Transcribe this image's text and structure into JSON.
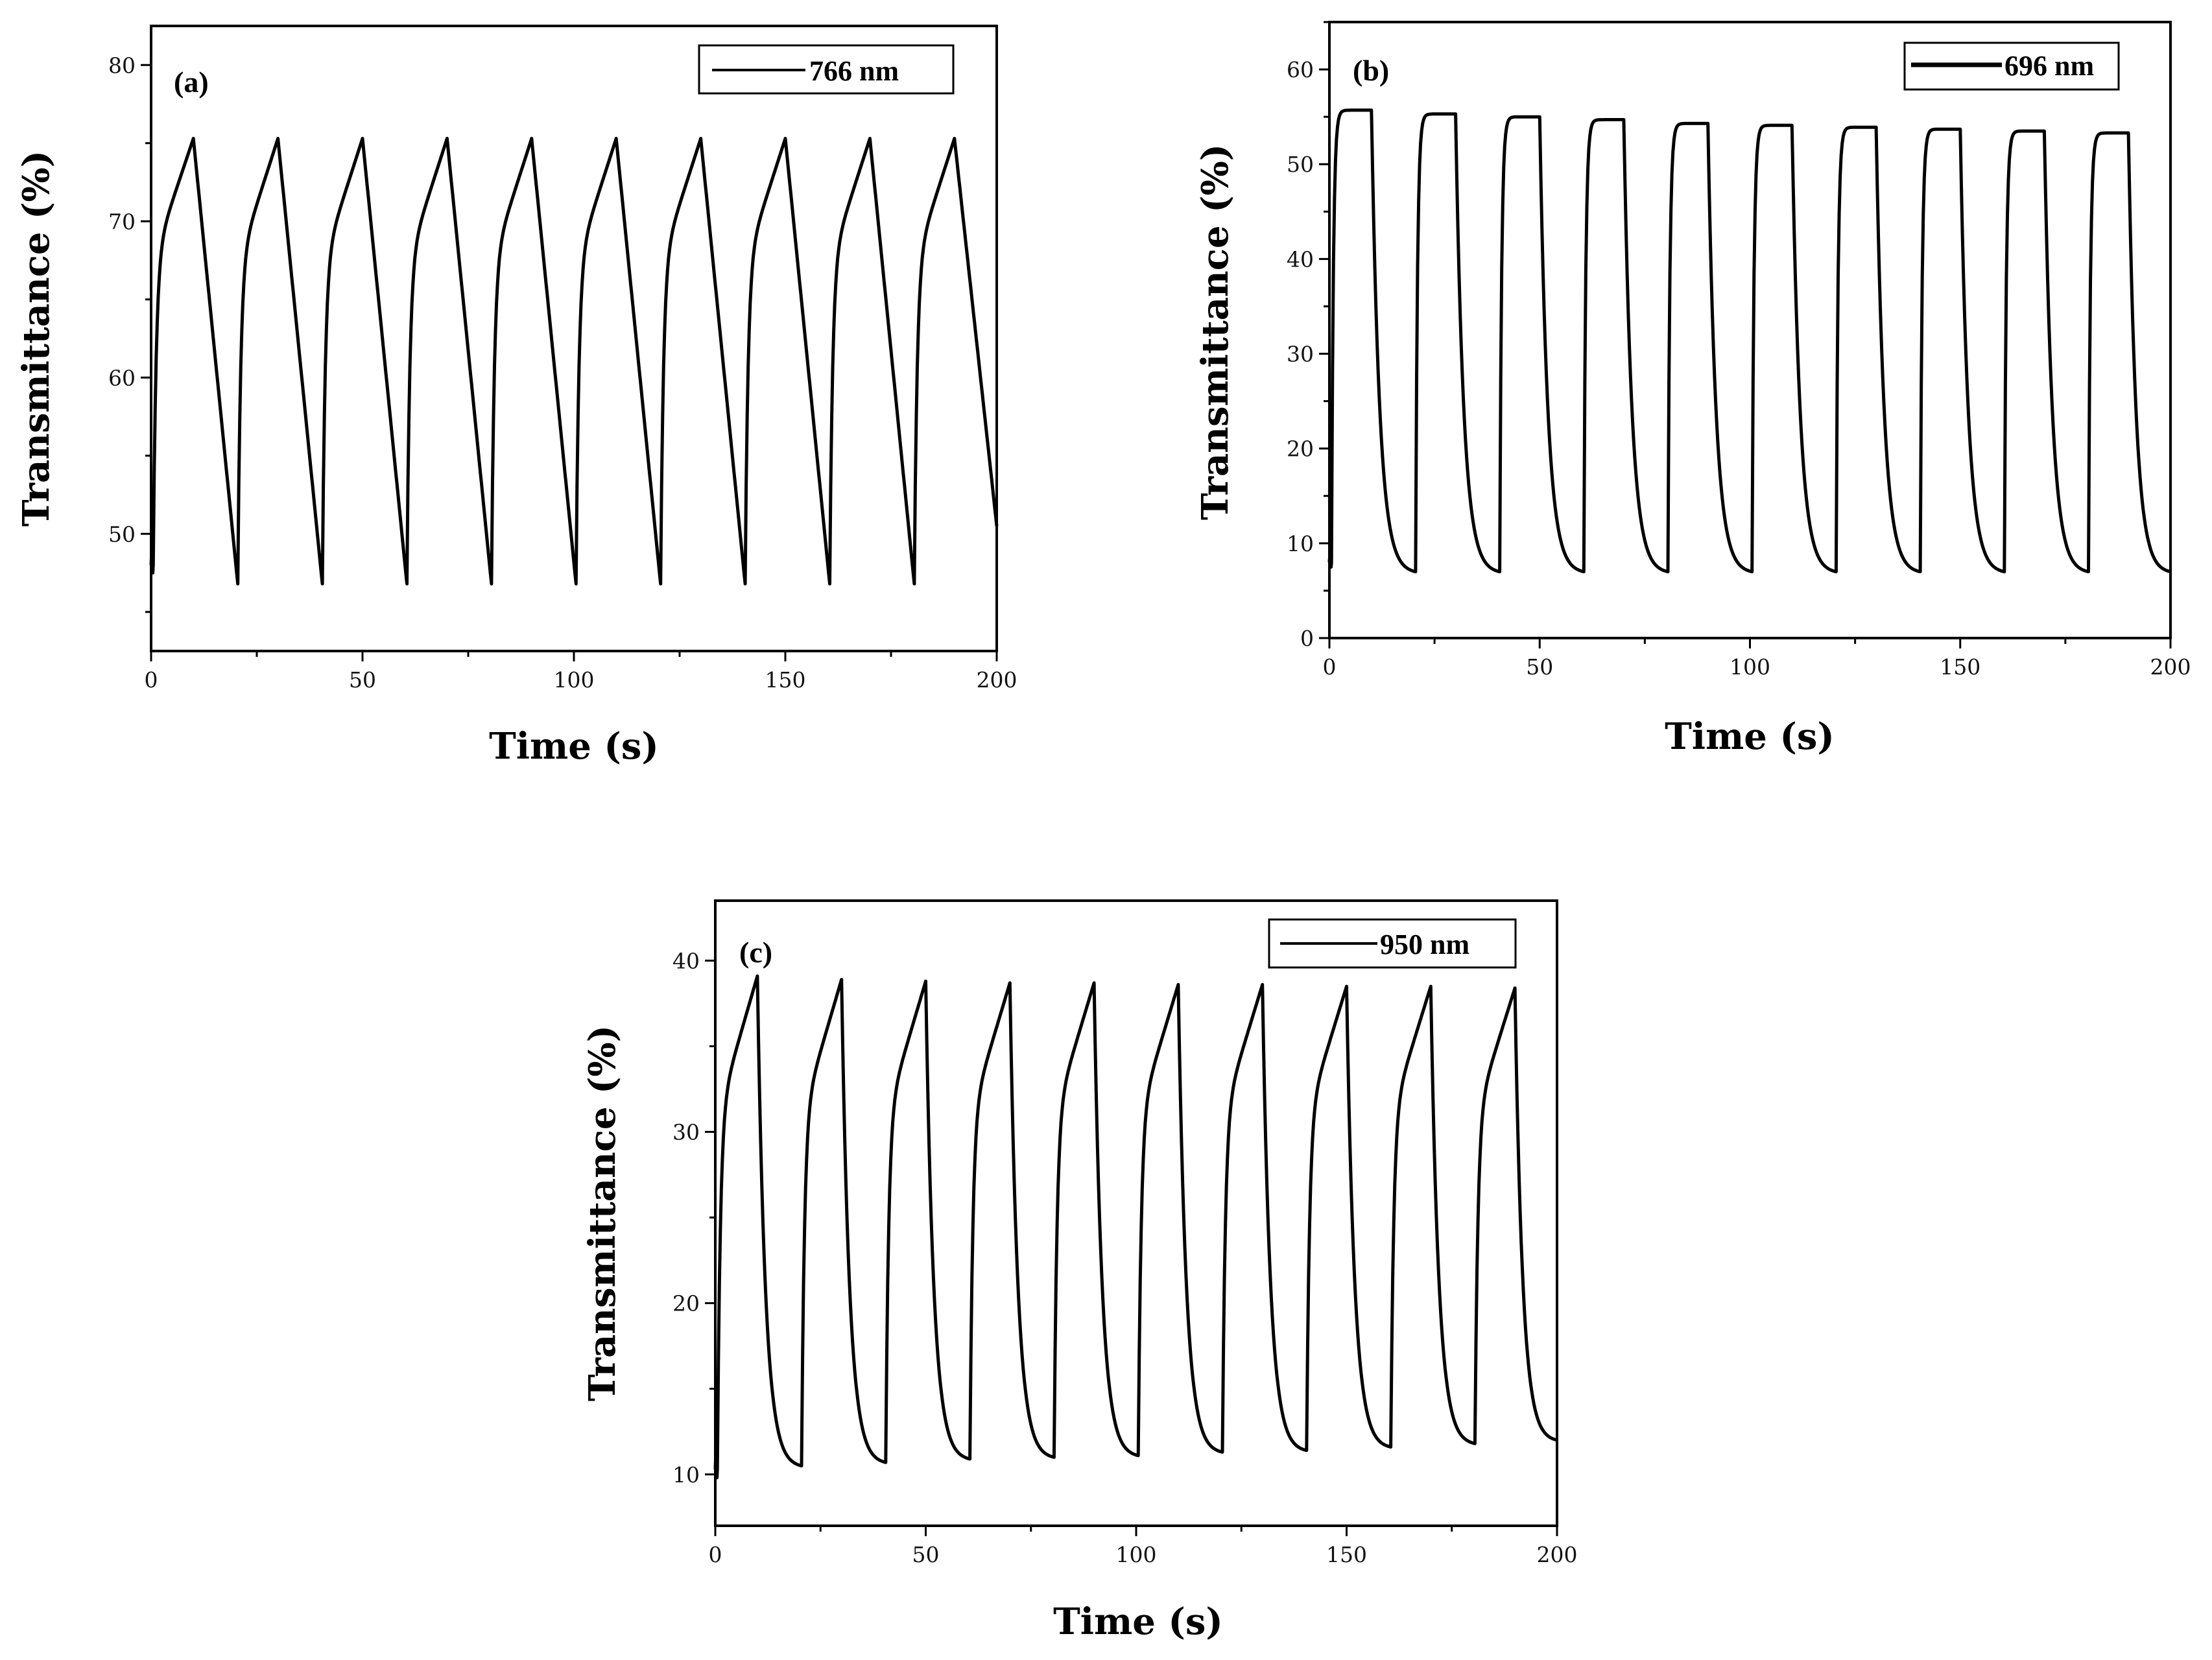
{
  "chart_data": [
    {
      "type": "line",
      "panel_label": "(a)",
      "title": "",
      "xlabel": "Time (s)",
      "ylabel": "Transmittance (%)",
      "xlim": [
        0,
        200
      ],
      "ylim": [
        42.5,
        82.5
      ],
      "xticks": [
        0,
        50,
        100,
        150,
        200
      ],
      "yticks": [
        50,
        60,
        70,
        80
      ],
      "legend": {
        "position": "top-right",
        "entries": [
          "766 nm"
        ]
      },
      "grid": false,
      "series": [
        {
          "name": "766 nm",
          "color": "#000000",
          "period": 20,
          "bleach_time": 10,
          "t_start": 0.5,
          "max_values": [
            75.3,
            75.3,
            75.3,
            75.3,
            75.3,
            75.3,
            75.3,
            75.3,
            75.3,
            75.3
          ],
          "min_values": [
            48.0,
            46.8,
            46.8,
            46.8,
            46.8,
            46.8,
            46.8,
            46.8,
            46.8,
            46.8,
            50.5
          ],
          "rise_shape": "fast-log",
          "decay_shape": "linear"
        }
      ]
    },
    {
      "type": "line",
      "panel_label": "(b)",
      "title": "",
      "xlabel": "Time (s)",
      "ylabel": "Transmittance (%)",
      "xlim": [
        0,
        200
      ],
      "ylim": [
        0,
        65
      ],
      "xticks": [
        0,
        50,
        100,
        150,
        200
      ],
      "yticks": [
        0,
        10,
        20,
        30,
        40,
        50,
        60
      ],
      "legend": {
        "position": "top-right",
        "entries": [
          "696 nm"
        ]
      },
      "grid": false,
      "series": [
        {
          "name": "696 nm",
          "color": "#000000",
          "period": 20,
          "bleach_time": 10,
          "t_start": 0.5,
          "max_values": [
            55.7,
            55.3,
            55.0,
            54.7,
            54.3,
            54.1,
            53.9,
            53.7,
            53.5,
            53.3
          ],
          "min_values": [
            8.0,
            7.0,
            7.0,
            7.0,
            7.0,
            7.0,
            7.0,
            7.0,
            7.0,
            7.0,
            7.0
          ],
          "rise_shape": "plateau",
          "decay_shape": "exponential"
        }
      ]
    },
    {
      "type": "line",
      "panel_label": "(c)",
      "title": "",
      "xlabel": "Time (s)",
      "ylabel": "Transmittance (%)",
      "xlim": [
        0,
        200
      ],
      "ylim": [
        7,
        43.5
      ],
      "xticks": [
        0,
        50,
        100,
        150,
        200
      ],
      "yticks": [
        10,
        20,
        30,
        40
      ],
      "legend": {
        "position": "top-right",
        "entries": [
          "950 nm"
        ]
      },
      "grid": false,
      "series": [
        {
          "name": "950 nm",
          "color": "#000000",
          "period": 20,
          "bleach_time": 10,
          "t_start": 0.5,
          "max_values": [
            39.1,
            38.9,
            38.8,
            38.7,
            38.7,
            38.6,
            38.6,
            38.5,
            38.5,
            38.4
          ],
          "min_values": [
            10.3,
            10.5,
            10.7,
            10.9,
            11.0,
            11.1,
            11.3,
            11.4,
            11.6,
            11.8,
            12.0
          ],
          "rise_shape": "fast-log",
          "decay_shape": "exponential"
        }
      ]
    }
  ]
}
